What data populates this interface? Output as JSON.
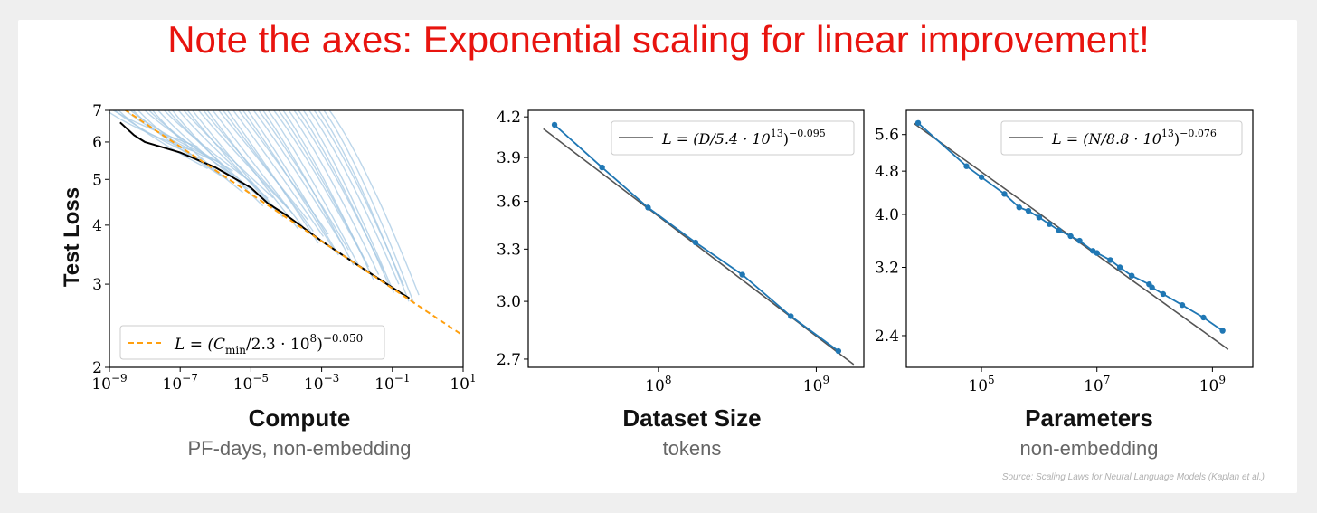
{
  "headline": "Note the axes: Exponential scaling for linear improvement!",
  "source": "Source: Scaling Laws for Neural Language Models (Kaplan et al.)",
  "colors": {
    "headline": "#e8140f",
    "blue": "#1f77b4",
    "lightblue": "#a6c8e3",
    "orange": "#ff9f0e",
    "fit": "#555555",
    "frontier": "#000000"
  },
  "chart_data": [
    {
      "type": "line",
      "title": "Compute",
      "subtitle": "PF-days, non-embedding",
      "ylabel": "Test Loss",
      "xscale": "log",
      "yscale": "log",
      "xlim": [
        1e-09,
        10
      ],
      "ylim": [
        2,
        7
      ],
      "xticks": [
        "10^-9",
        "10^-7",
        "10^-5",
        "10^-3",
        "10^-1",
        "10^1"
      ],
      "yticks": [
        {
          "value": 2,
          "label": "2"
        },
        {
          "value": 3,
          "label": "3"
        },
        {
          "value": 4,
          "label": "4"
        },
        {
          "value": 5,
          "label": "5"
        },
        {
          "value": 6,
          "label": "6"
        },
        {
          "value": 7,
          "label": "7"
        }
      ],
      "legend": {
        "position": "bottom-left",
        "label_lead": "L = (C",
        "label_sub": "min",
        "label_tail": "/2.3 · 10",
        "label_exp": "8",
        "label_end": ")",
        "label_pow": "−0.050"
      },
      "fit": {
        "name": "L = (Cmin/2.3·10^8)^−0.050",
        "C0": 230000000.0,
        "alpha": 0.05,
        "style": "dashed",
        "color": "#ff9f0e"
      },
      "frontier": {
        "x": [
          2e-09,
          5e-09,
          1e-08,
          1e-07,
          1e-06,
          1e-05,
          3e-05,
          0.0001,
          0.001,
          0.01,
          0.1,
          0.3
        ],
        "y": [
          6.6,
          6.2,
          6.0,
          5.7,
          5.3,
          4.8,
          4.45,
          4.2,
          3.7,
          3.3,
          2.95,
          2.8
        ]
      },
      "curves_note": "many individual training curves (light blue)"
    },
    {
      "type": "line",
      "title": "Dataset Size",
      "subtitle": "tokens",
      "xscale": "log",
      "yscale": "log",
      "xlim": [
        15000000.0,
        2000000000.0
      ],
      "ylim": [
        2.66,
        4.25
      ],
      "xticks": [
        {
          "value": 100000000.0,
          "base": "10",
          "exp": "8"
        },
        {
          "value": 1000000000.0,
          "base": "10",
          "exp": "9"
        }
      ],
      "yticks": [
        {
          "value": 2.7,
          "label": "2.7"
        },
        {
          "value": 3.0,
          "label": "3.0"
        },
        {
          "value": 3.3,
          "label": "3.3"
        },
        {
          "value": 3.6,
          "label": "3.6"
        },
        {
          "value": 3.9,
          "label": "3.9"
        },
        {
          "value": 4.2,
          "label": "4.2"
        }
      ],
      "legend": {
        "position": "top-right",
        "label_lead": "L = (D/5.4 · 10",
        "label_exp": "13",
        "label_end": ")",
        "label_pow": "−0.095"
      },
      "fit": {
        "C0": 54000000000000.0,
        "alpha": 0.095,
        "color": "#555555"
      },
      "series": [
        {
          "x": [
            22000000.0,
            44000000.0,
            86000000.0,
            172000000.0,
            340000000.0,
            690000000.0,
            1380000000.0
          ],
          "y": [
            4.14,
            3.83,
            3.56,
            3.34,
            3.15,
            2.92,
            2.74
          ]
        }
      ]
    },
    {
      "type": "line",
      "title": "Parameters",
      "subtitle": "non-embedding",
      "xscale": "log",
      "yscale": "log",
      "xlim": [
        5000.0,
        5000000000.0
      ],
      "ylim": [
        2.1,
        6.2
      ],
      "xticks": [
        {
          "value": 100000.0,
          "base": "10",
          "exp": "5"
        },
        {
          "value": 10000000.0,
          "base": "10",
          "exp": "7"
        },
        {
          "value": 1000000000.0,
          "base": "10",
          "exp": "9"
        }
      ],
      "yticks": [
        {
          "value": 2.4,
          "label": "2.4"
        },
        {
          "value": 3.2,
          "label": "3.2"
        },
        {
          "value": 4.0,
          "label": "4.0"
        },
        {
          "value": 4.8,
          "label": "4.8"
        },
        {
          "value": 5.6,
          "label": "5.6"
        }
      ],
      "legend": {
        "position": "top-right",
        "label_lead": "L = (N/8.8 · 10",
        "label_exp": "13",
        "label_end": ")",
        "label_pow": "−0.076"
      },
      "fit": {
        "C0": 88000000000000.0,
        "alpha": 0.076,
        "color": "#555555"
      },
      "series": [
        {
          "x": [
            8000.0,
            55000.0,
            100000.0,
            250000.0,
            450000.0,
            650000.0,
            1000000.0,
            1500000.0,
            2200000.0,
            3500000.0,
            5000000.0,
            8500000.0,
            10000000.0,
            17000000.0,
            25000000.0,
            40000000.0,
            80000000.0,
            90000000.0,
            140000000.0,
            300000000.0,
            700000000.0,
            1500000000.0
          ],
          "y": [
            5.88,
            4.9,
            4.68,
            4.36,
            4.12,
            4.06,
            3.95,
            3.84,
            3.74,
            3.65,
            3.58,
            3.43,
            3.4,
            3.3,
            3.2,
            3.09,
            2.98,
            2.94,
            2.86,
            2.73,
            2.59,
            2.45
          ]
        }
      ]
    }
  ]
}
